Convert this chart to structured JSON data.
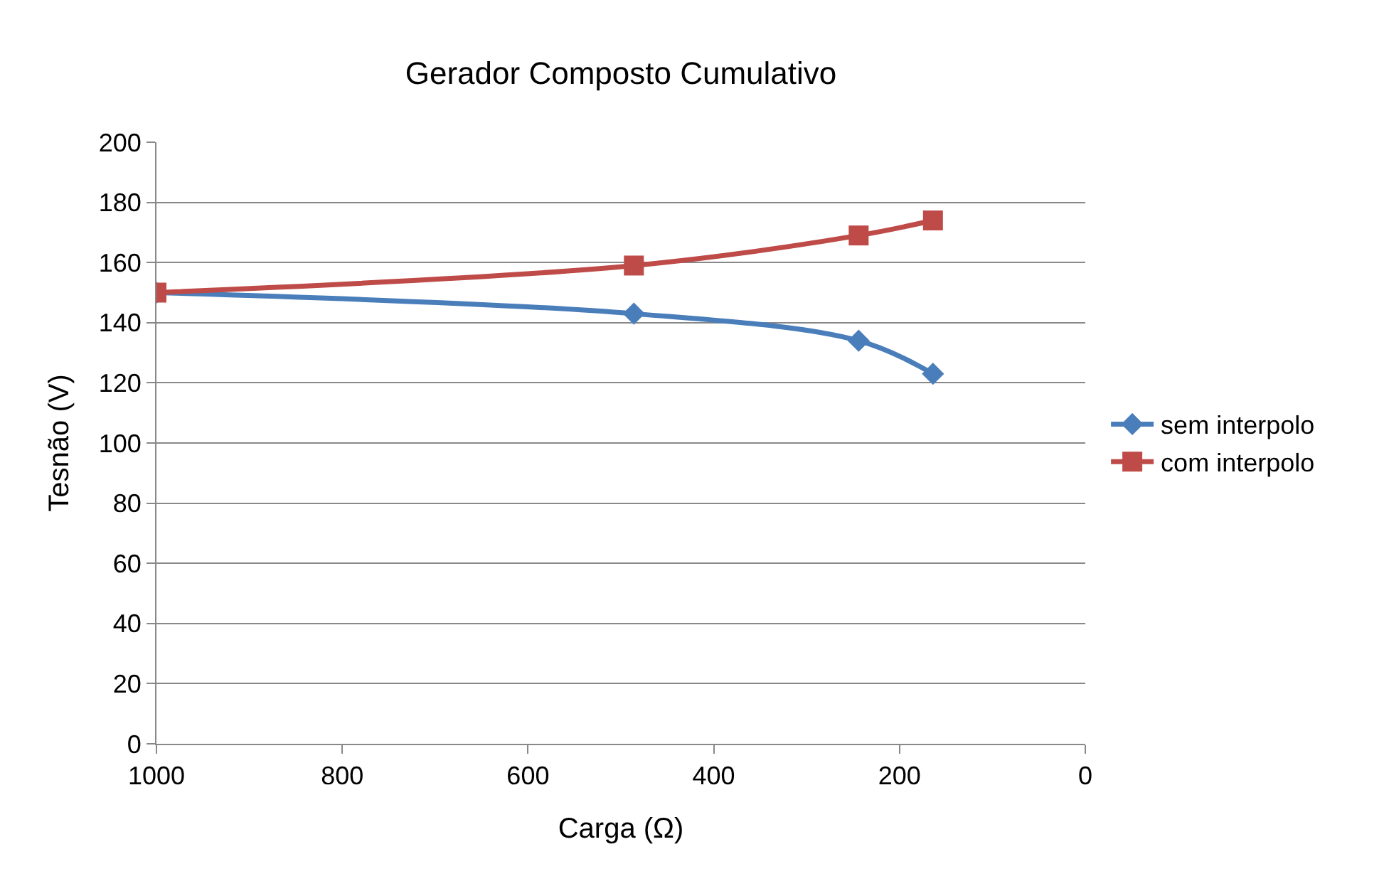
{
  "chart_data": {
    "type": "line",
    "title": "Gerador Composto Cumulativo",
    "xlabel": "Carga (Ω)",
    "ylabel": "Tesnão (V)",
    "xlim": [
      1000,
      0
    ],
    "xticks": [
      1000,
      800,
      600,
      400,
      200,
      0
    ],
    "ylim": [
      0,
      200
    ],
    "yticks": [
      0,
      20,
      40,
      60,
      80,
      100,
      120,
      140,
      160,
      180,
      200
    ],
    "grid": "y",
    "legend": "right",
    "line_style": "solid",
    "series": [
      {
        "name": "sem interpolo",
        "color": "#4a7ebb",
        "marker": "diamond",
        "x": [
          1000,
          486,
          244,
          164
        ],
        "values": [
          150,
          143,
          134,
          123
        ]
      },
      {
        "name": "com interpolo",
        "color": "#be4b48",
        "marker": "square",
        "x": [
          1000,
          486,
          244,
          164
        ],
        "values": [
          150,
          159,
          169,
          174
        ]
      }
    ]
  }
}
